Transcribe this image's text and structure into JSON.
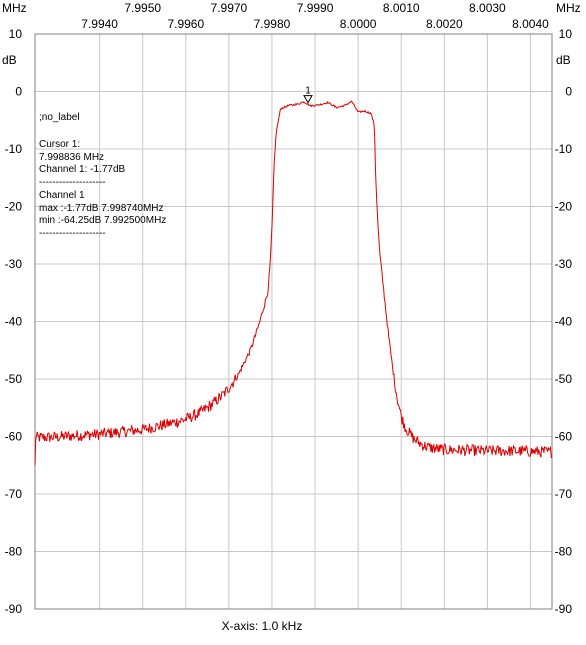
{
  "chart_data": {
    "type": "line",
    "units": {
      "x": "MHz",
      "y": "dB"
    },
    "x_tick_labels_top": [
      "7.9950",
      "7.9970",
      "7.9990",
      "8.0010",
      "8.0030"
    ],
    "x_tick_labels_bottom": [
      "7.9940",
      "7.9960",
      "7.9980",
      "8.0000",
      "8.0020",
      "8.0040"
    ],
    "y_ticks": [
      10,
      0,
      -10,
      -20,
      -30,
      -40,
      -50,
      -60,
      -70,
      -80,
      -90
    ],
    "xlim": [
      7.9925,
      8.0045
    ],
    "ylim": [
      -90,
      10
    ],
    "grid": true,
    "xaxis_caption": "X-axis: 1.0 kHz",
    "series": [
      {
        "color": "#dd0000",
        "x": [
          7.9925,
          7.993,
          7.9935,
          7.994,
          7.9945,
          7.995,
          7.9953,
          7.9956,
          7.996,
          7.9963,
          7.9966,
          7.9969,
          7.9972,
          7.9975,
          7.9977,
          7.9979,
          7.99795,
          7.998,
          7.99805,
          7.9981,
          7.9982,
          7.9984,
          7.9986,
          7.99874,
          7.9989,
          7.9991,
          7.9993,
          7.9995,
          7.9997,
          7.99985,
          8.0,
          8.00015,
          8.0003,
          8.00038,
          8.0004,
          8.00045,
          8.0005,
          8.0006,
          8.0007,
          8.0008,
          8.0009,
          8.001,
          8.00105,
          8.0011,
          8.0012,
          8.0013,
          8.0015,
          8.0017,
          8.002,
          8.0025,
          8.003,
          8.0035,
          8.004,
          8.0045
        ],
        "y": [
          -60.2,
          -60.1,
          -59.8,
          -59.6,
          -59.2,
          -58.8,
          -58.3,
          -57.8,
          -57,
          -56,
          -54.5,
          -52.5,
          -49.5,
          -45,
          -40.5,
          -35,
          -31,
          -24,
          -13,
          -7,
          -3,
          -2.4,
          -2.2,
          -1.77,
          -2.5,
          -2.3,
          -1.9,
          -2.8,
          -2.4,
          -1.7,
          -3.6,
          -3.4,
          -3.8,
          -6,
          -13,
          -22,
          -28,
          -35,
          -42,
          -48,
          -53,
          -56.5,
          -57.5,
          -58.5,
          -59.5,
          -60.5,
          -61.5,
          -62,
          -62.3,
          -62.4,
          -62.5,
          -62.5,
          -62.6,
          -62.7
        ]
      }
    ],
    "cursor": {
      "label": "1",
      "x": 7.998836,
      "y": -1.77
    },
    "annotations": [
      ";no_label",
      "Cursor 1:",
      "7.998836 MHz",
      "Channel 1: -1.77dB",
      "--------------------",
      "Channel 1",
      "max :-1.77dB 7.998740MHz",
      "min :-64.25dB 7.992500MHz",
      "--------------------"
    ]
  }
}
